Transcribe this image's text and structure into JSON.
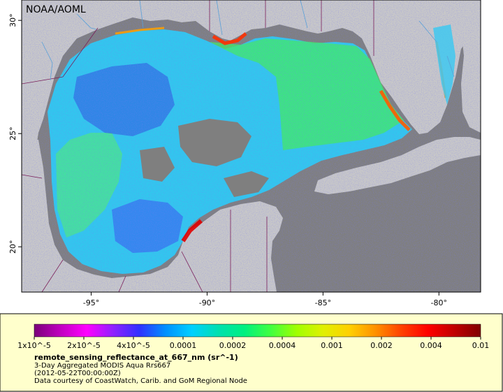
{
  "credit_top": "NOAA/AOML",
  "x_ticks": [
    {
      "label": "-95°",
      "lon": -95
    },
    {
      "label": "-90°",
      "lon": -90
    },
    {
      "label": "-85°",
      "lon": -85
    },
    {
      "label": "-80°",
      "lon": -80
    }
  ],
  "y_ticks": [
    {
      "label": "30°",
      "lat": 30
    },
    {
      "label": "25°",
      "lat": 25
    },
    {
      "label": "20°",
      "lat": 20
    }
  ],
  "colorbar": {
    "ticks": [
      "1x10^-5",
      "2x10^-5",
      "4x10^-5",
      "0.0001",
      "0.0002",
      "0.0004",
      "0.001",
      "0.002",
      "0.004",
      "0.01"
    ],
    "colors": [
      "#7a007a",
      "#c000c0",
      "#ff00ff",
      "#9020ff",
      "#3030ff",
      "#0090ff",
      "#00d0ff",
      "#00e0b0",
      "#00f080",
      "#40ff40",
      "#a0ff00",
      "#e0f000",
      "#ffd000",
      "#ff9000",
      "#ff4000",
      "#ff0000",
      "#c00000",
      "#800000"
    ]
  },
  "legend": {
    "variable": "remote_sensing_reflectance_at_667_nm (sr^-1)",
    "line1": "3-Day Aggregated MODIS Aqua Rrs667",
    "line2": "(2012-05-22T00:00:00Z)",
    "line3": "Data courtesy of CoastWatch, Carib. and GoM Regional Node"
  },
  "colors": {
    "land": "#c8c8c8",
    "nodata": "#7f7f7f",
    "legend_bg": "#ffffcc",
    "border": "#7a1f5a",
    "river": "#5aa0d8"
  }
}
